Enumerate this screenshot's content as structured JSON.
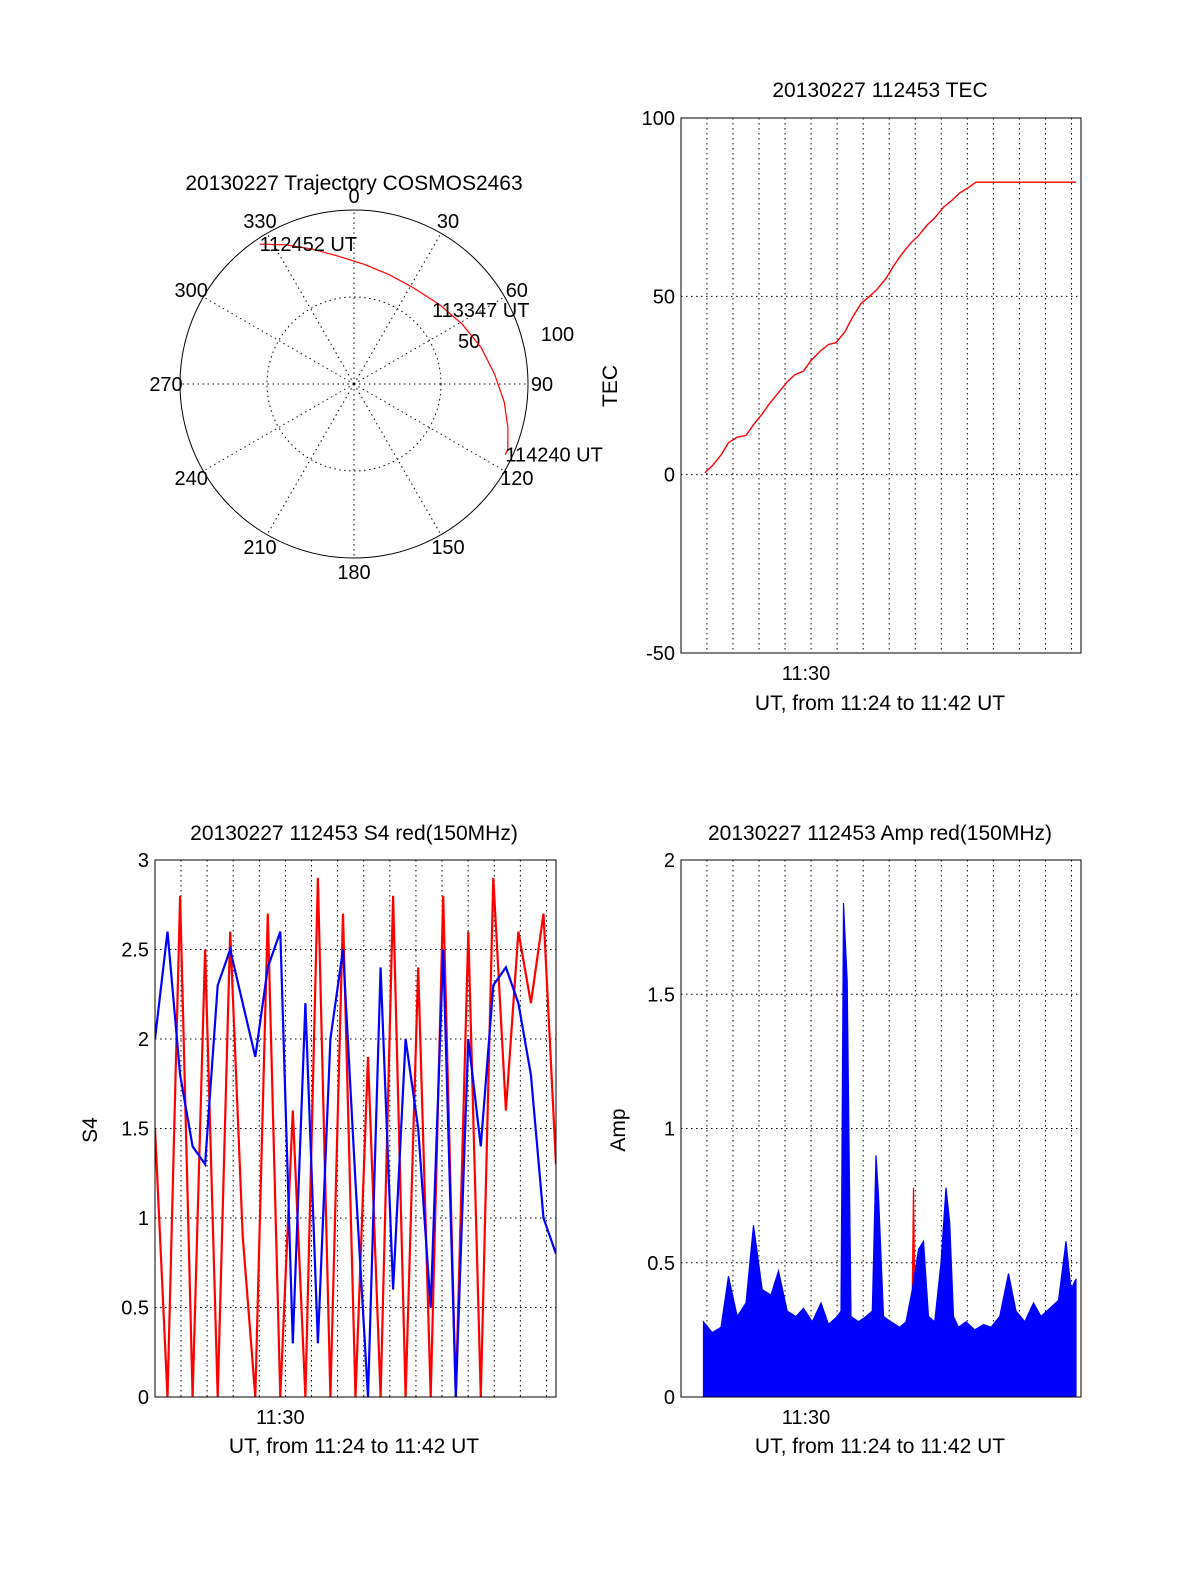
{
  "colors": {
    "red": "#ff0000",
    "blue": "#0000ff",
    "ink": "#000000"
  },
  "chart_data": [
    {
      "id": "trajectory",
      "type": "polar",
      "title": "20130227 Trajectory COSMOS2463",
      "angle_labels": [
        "0",
        "30",
        "60",
        "90",
        "120",
        "150",
        "180",
        "210",
        "240",
        "270",
        "300",
        "330"
      ],
      "radial_ticks": [
        {
          "value": 50,
          "label": "50"
        },
        {
          "value": 100,
          "label": "100"
        }
      ],
      "radial_max": 100,
      "series": [
        {
          "color": "red",
          "points": [
            {
              "az": 326,
              "r": 97,
              "label": "112452 UT"
            },
            {
              "az": 334,
              "r": 89
            },
            {
              "az": 343,
              "r": 81
            },
            {
              "az": 353,
              "r": 74
            },
            {
              "az": 5,
              "r": 69
            },
            {
              "az": 18,
              "r": 66
            },
            {
              "az": 32,
              "r": 65
            },
            {
              "az": 47,
              "r": 67
            },
            {
              "az": 61,
              "r": 71
            },
            {
              "az": 74,
              "r": 76
            },
            {
              "az": 86,
              "r": 81
            },
            {
              "az": 97,
              "r": 87
            },
            {
              "az": 106,
              "r": 92
            },
            {
              "az": 113,
              "r": 96
            },
            {
              "az": 115,
              "r": 96,
              "label": "114240 UT"
            }
          ],
          "annotations": [
            {
              "az": 50,
              "r": 66,
              "label": "113347 UT"
            }
          ]
        }
      ]
    },
    {
      "id": "tec",
      "type": "line",
      "title": "20130227 112453 TEC",
      "xlabel": "UT, from 11:24 to 11:42 UT",
      "ylabel": "TEC",
      "xlim": [
        11.4,
        11.72
      ],
      "ylim": [
        -50,
        100
      ],
      "yticks": [
        -50,
        0,
        50,
        100
      ],
      "xtick_labels": [
        {
          "value": 11.5,
          "label": "11:30"
        }
      ],
      "xgrid_step_min": 1.25,
      "series": [
        {
          "color": "red",
          "x": [
            11.419,
            11.425,
            11.432,
            11.438,
            11.445,
            11.452,
            11.458,
            11.465,
            11.471,
            11.478,
            11.485,
            11.491,
            11.498,
            11.504,
            11.511,
            11.518,
            11.524,
            11.531,
            11.537,
            11.544,
            11.551,
            11.557,
            11.564,
            11.57,
            11.577,
            11.584,
            11.59,
            11.597,
            11.603,
            11.61,
            11.617,
            11.623,
            11.63,
            11.636,
            11.643,
            11.65,
            11.656,
            11.663,
            11.669,
            11.676,
            11.683,
            11.689,
            11.696,
            11.702,
            11.709,
            11.716
          ],
          "values": [
            0.5,
            2.5,
            5.5,
            9,
            10.5,
            11,
            14,
            17,
            20,
            23,
            26,
            28,
            29,
            32,
            34.5,
            36.5,
            37,
            40,
            44,
            48,
            50,
            52,
            55,
            58.5,
            62,
            65,
            67,
            70,
            72,
            75,
            77,
            79,
            80.5,
            82,
            82,
            82,
            82,
            82,
            82,
            82,
            82,
            82,
            82,
            82,
            82,
            82
          ]
        }
      ]
    },
    {
      "id": "s4",
      "type": "line",
      "title": "20130227 112453 S4 red(150MHz)",
      "xlabel": "UT, from 11:24 to 11:42 UT",
      "ylabel": "S4",
      "xlim": [
        11.4,
        11.72
      ],
      "ylim": [
        0,
        3
      ],
      "yticks": [
        0,
        0.5,
        1,
        1.5,
        2,
        2.5,
        3
      ],
      "ytick_labels": [
        "0",
        "0.5",
        "1",
        "1.5",
        "2",
        "2.5",
        "3"
      ],
      "xtick_labels": [
        {
          "value": 11.5,
          "label": "11:30"
        }
      ],
      "xgrid_step_min": 1.25,
      "series": [
        {
          "color": "red",
          "x": [
            11.4,
            11.41,
            11.42,
            11.43,
            11.44,
            11.45,
            11.46,
            11.47,
            11.48,
            11.49,
            11.5,
            11.51,
            11.52,
            11.53,
            11.54,
            11.55,
            11.56,
            11.57,
            11.58,
            11.59,
            11.6,
            11.61,
            11.62,
            11.63,
            11.64,
            11.65,
            11.66,
            11.67,
            11.68,
            11.69,
            11.7,
            11.71,
            11.72
          ],
          "values": [
            1.5,
            0,
            2.8,
            0,
            2.5,
            0,
            2.6,
            0.9,
            0,
            2.7,
            0,
            1.6,
            0,
            2.9,
            0,
            2.7,
            0,
            1.9,
            0,
            2.8,
            0,
            2.4,
            0,
            2.8,
            0,
            2.6,
            0,
            2.9,
            1.6,
            2.6,
            2.2,
            2.7,
            1.3
          ]
        },
        {
          "color": "blue",
          "x": [
            11.4,
            11.41,
            11.42,
            11.43,
            11.44,
            11.45,
            11.46,
            11.47,
            11.48,
            11.49,
            11.5,
            11.51,
            11.52,
            11.53,
            11.54,
            11.55,
            11.56,
            11.57,
            11.58,
            11.59,
            11.6,
            11.61,
            11.62,
            11.63,
            11.64,
            11.65,
            11.66,
            11.67,
            11.68,
            11.69,
            11.7,
            11.71,
            11.72
          ],
          "values": [
            2.0,
            2.6,
            1.8,
            1.4,
            1.3,
            2.3,
            2.5,
            2.2,
            1.9,
            2.4,
            2.6,
            0.3,
            2.2,
            0.3,
            2.0,
            2.5,
            1.2,
            0,
            2.4,
            0.6,
            2.0,
            1.5,
            0.5,
            2.5,
            0,
            2.0,
            1.4,
            2.3,
            2.4,
            2.2,
            1.8,
            1.0,
            0.8
          ]
        }
      ]
    },
    {
      "id": "amp",
      "type": "line",
      "title": "20130227 112453 Amp red(150MHz)",
      "xlabel": "UT, from 11:24 to 11:42 UT",
      "ylabel": "Amp",
      "xlim": [
        11.4,
        11.72
      ],
      "ylim": [
        0,
        2
      ],
      "yticks": [
        0,
        0.5,
        1,
        1.5,
        2
      ],
      "ytick_labels": [
        "0",
        "0.5",
        "1",
        "1.5",
        "2"
      ],
      "xtick_labels": [
        {
          "value": 11.5,
          "label": "11:30"
        }
      ],
      "xgrid_step_min": 1.25,
      "series": [
        {
          "color": "red",
          "x": [
            11.53,
            11.531,
            11.533,
            11.558,
            11.56,
            11.584,
            11.586,
            11.588
          ],
          "values": [
            0,
            0.08,
            0,
            0,
            0.06,
            0,
            0.78,
            0
          ]
        },
        {
          "color": "blue",
          "x": [
            11.418,
            11.425,
            11.432,
            11.438,
            11.445,
            11.452,
            11.458,
            11.465,
            11.472,
            11.478,
            11.485,
            11.492,
            11.498,
            11.505,
            11.512,
            11.518,
            11.525,
            11.528,
            11.53,
            11.533,
            11.536,
            11.542,
            11.548,
            11.553,
            11.556,
            11.558,
            11.562,
            11.568,
            11.575,
            11.58,
            11.585,
            11.59,
            11.594,
            11.598,
            11.603,
            11.608,
            11.612,
            11.615,
            11.618,
            11.622,
            11.628,
            11.635,
            11.642,
            11.648,
            11.655,
            11.662,
            11.668,
            11.675,
            11.682,
            11.688,
            11.695,
            11.702,
            11.708,
            11.712,
            11.716
          ],
          "values": [
            0.28,
            0.24,
            0.26,
            0.45,
            0.3,
            0.35,
            0.64,
            0.4,
            0.38,
            0.47,
            0.32,
            0.3,
            0.33,
            0.28,
            0.35,
            0.27,
            0.3,
            0.32,
            1.84,
            1.55,
            0.3,
            0.28,
            0.3,
            0.32,
            0.9,
            0.75,
            0.3,
            0.28,
            0.26,
            0.28,
            0.4,
            0.55,
            0.58,
            0.3,
            0.28,
            0.5,
            0.78,
            0.65,
            0.3,
            0.26,
            0.28,
            0.25,
            0.27,
            0.26,
            0.3,
            0.46,
            0.32,
            0.28,
            0.35,
            0.3,
            0.33,
            0.36,
            0.58,
            0.4,
            0.44
          ]
        }
      ]
    }
  ]
}
